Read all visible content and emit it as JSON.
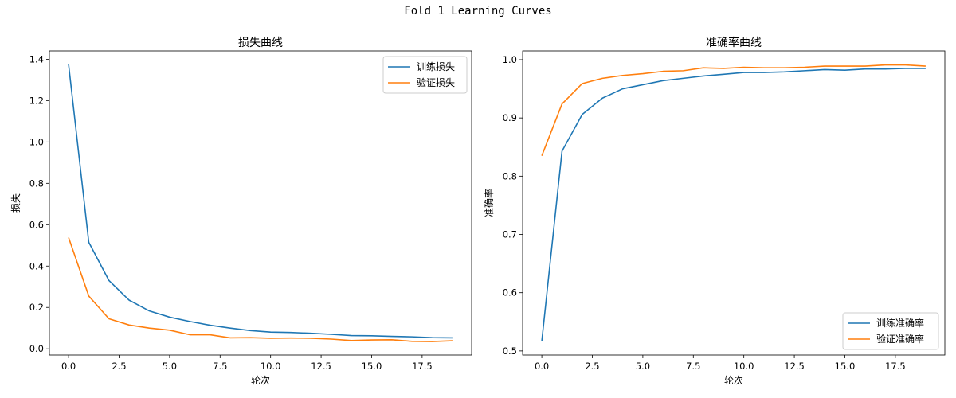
{
  "figure": {
    "title": "Fold 1 Learning Curves"
  },
  "colors": {
    "train": "#1f77b4",
    "val": "#ff7f0e"
  },
  "chart_data": [
    {
      "type": "line",
      "title": "损失曲线",
      "xlabel": "轮次",
      "ylabel": "损失",
      "xlim": [
        -0.95,
        19.95
      ],
      "ylim": [
        -0.03,
        1.44
      ],
      "xticks": [
        0.0,
        2.5,
        5.0,
        7.5,
        10.0,
        12.5,
        15.0,
        17.5
      ],
      "xtick_labels": [
        "0.0",
        "2.5",
        "5.0",
        "7.5",
        "10.0",
        "12.5",
        "15.0",
        "17.5"
      ],
      "yticks": [
        0.0,
        0.2,
        0.4,
        0.6,
        0.8,
        1.0,
        1.2,
        1.4
      ],
      "ytick_labels": [
        "0.0",
        "0.2",
        "0.4",
        "0.6",
        "0.8",
        "1.0",
        "1.2",
        "1.4"
      ],
      "legend_position": "top-right",
      "x": [
        0,
        1,
        2,
        3,
        4,
        5,
        6,
        7,
        8,
        9,
        10,
        11,
        12,
        13,
        14,
        15,
        16,
        17,
        18,
        19
      ],
      "series": [
        {
          "name": "训练损失",
          "color": "#1f77b4",
          "values": [
            1.375,
            0.515,
            0.33,
            0.235,
            0.183,
            0.153,
            0.132,
            0.114,
            0.1,
            0.088,
            0.081,
            0.079,
            0.075,
            0.07,
            0.064,
            0.063,
            0.06,
            0.058,
            0.054,
            0.053
          ]
        },
        {
          "name": "验证损失",
          "color": "#ff7f0e",
          "values": [
            0.538,
            0.255,
            0.145,
            0.115,
            0.1,
            0.09,
            0.068,
            0.068,
            0.053,
            0.054,
            0.051,
            0.052,
            0.051,
            0.047,
            0.04,
            0.043,
            0.044,
            0.036,
            0.035,
            0.039
          ]
        }
      ]
    },
    {
      "type": "line",
      "title": "准确率曲线",
      "xlabel": "轮次",
      "ylabel": "准确率",
      "xlim": [
        -0.95,
        19.95
      ],
      "ylim": [
        0.493,
        1.015
      ],
      "xticks": [
        0.0,
        2.5,
        5.0,
        7.5,
        10.0,
        12.5,
        15.0,
        17.5
      ],
      "xtick_labels": [
        "0.0",
        "2.5",
        "5.0",
        "7.5",
        "10.0",
        "12.5",
        "15.0",
        "17.5"
      ],
      "yticks": [
        0.5,
        0.6,
        0.7,
        0.8,
        0.9,
        1.0
      ],
      "ytick_labels": [
        "0.5",
        "0.6",
        "0.7",
        "0.8",
        "0.9",
        "1.0"
      ],
      "legend_position": "bottom-right",
      "x": [
        0,
        1,
        2,
        3,
        4,
        5,
        6,
        7,
        8,
        9,
        10,
        11,
        12,
        13,
        14,
        15,
        16,
        17,
        18,
        19
      ],
      "series": [
        {
          "name": "训练准确率",
          "color": "#1f77b4",
          "values": [
            0.517,
            0.843,
            0.906,
            0.934,
            0.95,
            0.957,
            0.964,
            0.968,
            0.972,
            0.975,
            0.978,
            0.978,
            0.979,
            0.981,
            0.983,
            0.982,
            0.984,
            0.984,
            0.985,
            0.985
          ]
        },
        {
          "name": "验证准确率",
          "color": "#ff7f0e",
          "values": [
            0.835,
            0.924,
            0.959,
            0.968,
            0.973,
            0.976,
            0.98,
            0.981,
            0.986,
            0.985,
            0.987,
            0.986,
            0.986,
            0.987,
            0.989,
            0.989,
            0.989,
            0.991,
            0.991,
            0.989
          ]
        }
      ]
    }
  ]
}
